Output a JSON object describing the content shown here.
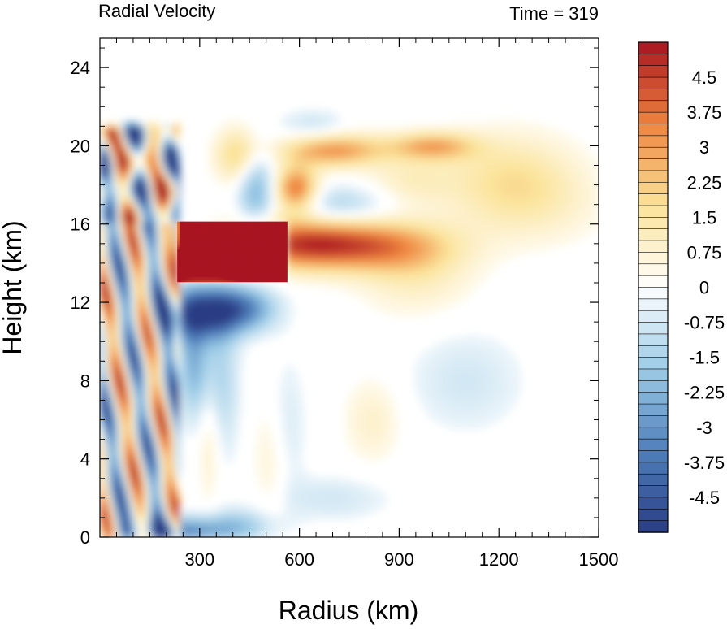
{
  "chart_data": {
    "type": "heatmap",
    "title_left": "Radial Velocity",
    "title_right": "Time = 319",
    "xlabel": "Radius (km)",
    "ylabel": "Height (km)",
    "xlim": [
      0,
      1500
    ],
    "ylim": [
      0,
      25.5
    ],
    "x_ticks": [
      300,
      600,
      900,
      1200,
      1500
    ],
    "y_ticks": [
      0,
      4,
      8,
      12,
      16,
      20,
      24
    ],
    "x_minor_step": 50,
    "y_minor_step": 1,
    "colorbar": {
      "min": -5.25,
      "max": 5.25,
      "step": 0.25,
      "labels": [
        "4.5",
        "3.75",
        "3",
        "2.25",
        "1.5",
        "0.75",
        "0",
        "-0.75",
        "-1.5",
        "-2.25",
        "-3",
        "-3.75",
        "-4.5"
      ],
      "label_values": [
        4.5,
        3.75,
        3,
        2.25,
        1.5,
        0.75,
        0,
        -0.75,
        -1.5,
        -2.25,
        -3,
        -3.75,
        -4.5
      ],
      "colormap": [
        "#2a3c84",
        "#4f7fbb",
        "#9ccbe6",
        "#ffffff",
        "#fbe39a",
        "#ee843e",
        "#a81421"
      ]
    },
    "features": [
      {
        "kind": "outflow_jet",
        "radius_km": [
          230,
          560
        ],
        "height_km": [
          13,
          16
        ],
        "value": 5.0
      },
      {
        "kind": "outflow_jet_tail",
        "radius_km": [
          560,
          1000
        ],
        "height_km": [
          14,
          15.5
        ],
        "value": 2.5
      },
      {
        "kind": "inflow_below_outflow",
        "radius_km": [
          230,
          500
        ],
        "height_km": [
          10,
          12.5
        ],
        "value": -3.8
      },
      {
        "kind": "upper_outflow_arm",
        "radius_km": [
          560,
          1060
        ],
        "height_km": [
          18,
          20.5
        ],
        "value": 2.8
      },
      {
        "kind": "upper_outflow_plume",
        "radius_km": [
          1000,
          1450
        ],
        "height_km": [
          16,
          20
        ],
        "value": 1.0
      },
      {
        "kind": "inner_banded_wave",
        "radius_km": [
          0,
          230
        ],
        "height_km": [
          0,
          21
        ],
        "value": 4.0
      },
      {
        "kind": "boundary_inflow",
        "radius_km": [
          0,
          450
        ],
        "height_km": [
          0,
          1
        ],
        "value": -3.5
      }
    ]
  }
}
